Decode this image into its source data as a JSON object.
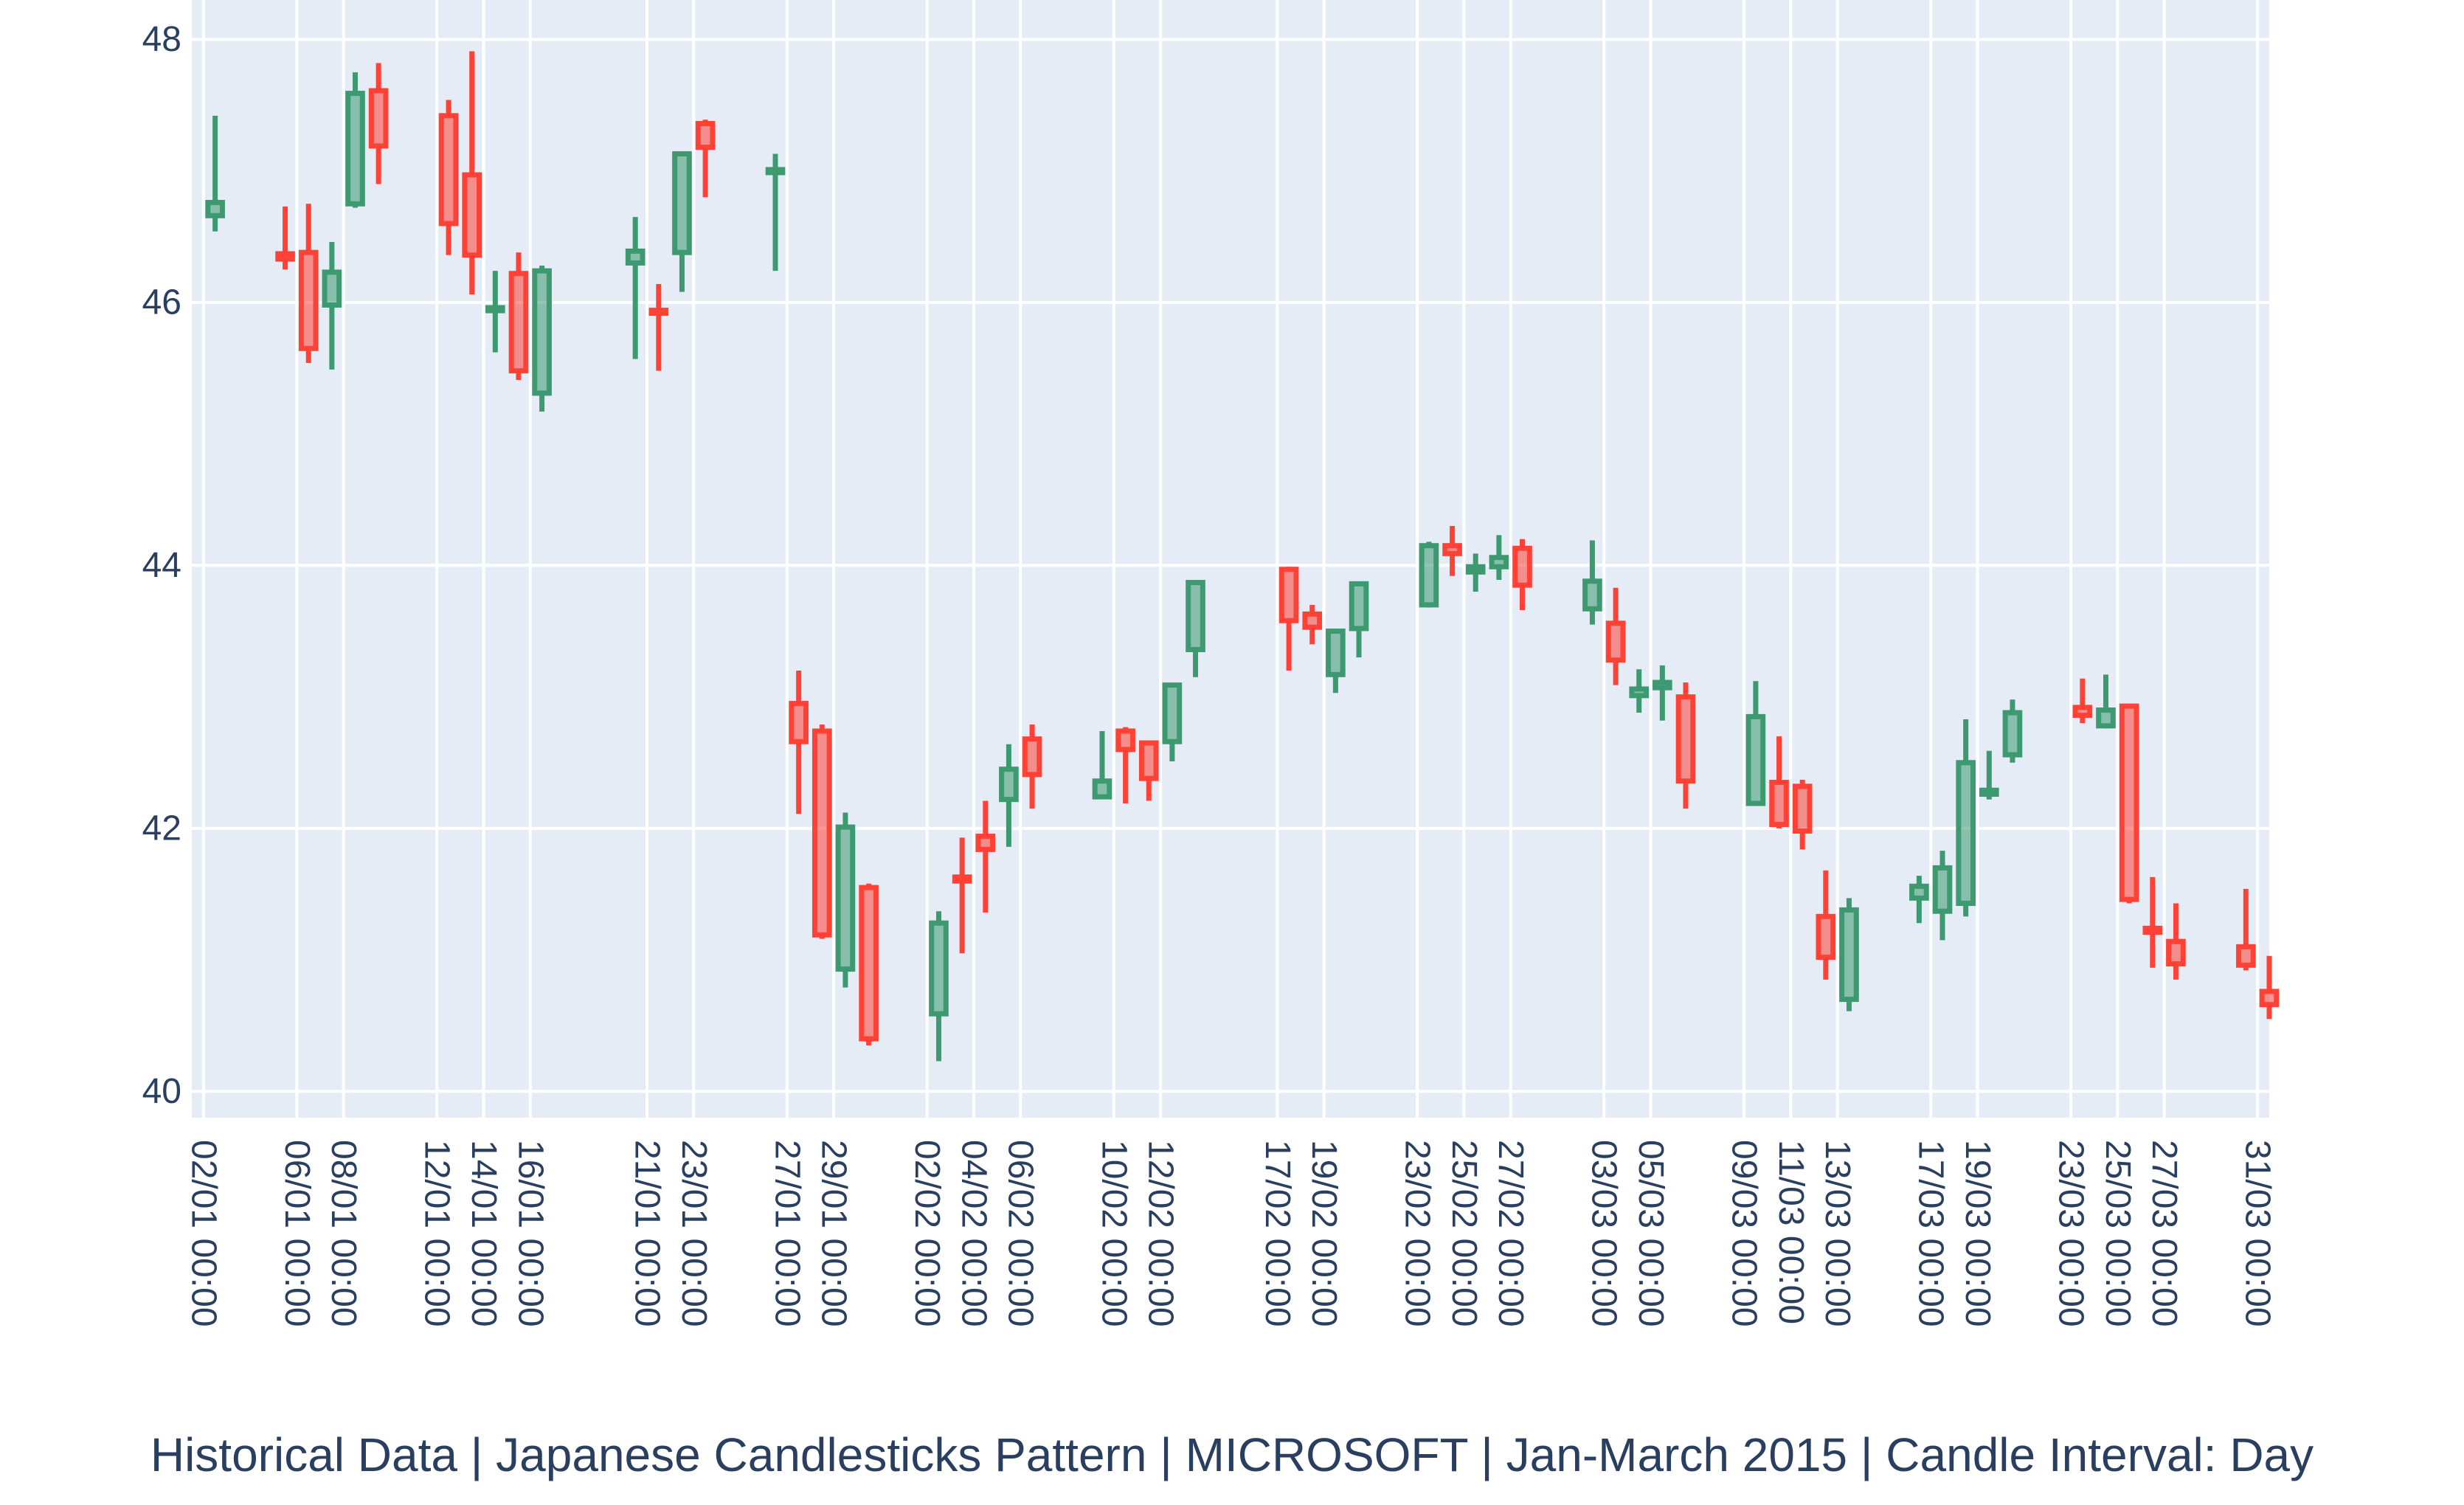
{
  "chart_data": {
    "type": "candlestick",
    "title": "",
    "xlabel": "Historical Data | Japanese Candlesticks Pattern | MICROSOFT | Jan-March 2015 | Candle Interval: Day",
    "ylabel": "",
    "ylim": [
      39.8,
      48.3
    ],
    "y_ticks": [
      40,
      42,
      44,
      46,
      48
    ],
    "grid": true,
    "legend": "none",
    "colors": {
      "background": "#e5ecf6",
      "grid": "#ffffff",
      "increasing": "#3d9970",
      "decreasing": "#ff4136",
      "text": "#2a3f5f"
    },
    "x_ticks": [
      "02/01 00:00",
      "06/01 00:00",
      "08/01 00:00",
      "12/01 00:00",
      "14/01 00:00",
      "16/01 00:00",
      "21/01 00:00",
      "23/01 00:00",
      "27/01 00:00",
      "29/01 00:00",
      "02/02 00:00",
      "04/02 00:00",
      "06/02 00:00",
      "10/02 00:00",
      "12/02 00:00",
      "17/02 00:00",
      "19/02 00:00",
      "23/02 00:00",
      "25/02 00:00",
      "27/02 00:00",
      "03/03 00:00",
      "05/03 00:00",
      "09/03 00:00",
      "11/03 00:00",
      "13/03 00:00",
      "17/03 00:00",
      "19/03 00:00",
      "23/03 00:00",
      "25/03 00:00",
      "27/03 00:00",
      "31/03 00:00"
    ],
    "candles": [
      {
        "date": "2015-01-02",
        "open": 46.66,
        "high": 47.42,
        "low": 46.54,
        "close": 46.76
      },
      {
        "date": "2015-01-05",
        "open": 46.37,
        "high": 46.73,
        "low": 46.25,
        "close": 46.33
      },
      {
        "date": "2015-01-06",
        "open": 46.38,
        "high": 46.75,
        "low": 45.54,
        "close": 45.65
      },
      {
        "date": "2015-01-07",
        "open": 45.98,
        "high": 46.46,
        "low": 45.49,
        "close": 46.23
      },
      {
        "date": "2015-01-08",
        "open": 46.75,
        "high": 47.75,
        "low": 46.72,
        "close": 47.59
      },
      {
        "date": "2015-01-09",
        "open": 47.61,
        "high": 47.82,
        "low": 46.9,
        "close": 47.19
      },
      {
        "date": "2015-01-12",
        "open": 47.42,
        "high": 47.54,
        "low": 46.36,
        "close": 46.6
      },
      {
        "date": "2015-01-13",
        "open": 46.97,
        "high": 47.91,
        "low": 46.06,
        "close": 46.36
      },
      {
        "date": "2015-01-14",
        "open": 45.96,
        "high": 46.24,
        "low": 45.62,
        "close": 45.96
      },
      {
        "date": "2015-01-15",
        "open": 46.22,
        "high": 46.38,
        "low": 45.41,
        "close": 45.48
      },
      {
        "date": "2015-01-16",
        "open": 45.31,
        "high": 46.28,
        "low": 45.17,
        "close": 46.24
      },
      {
        "date": "2015-01-20",
        "open": 46.3,
        "high": 46.65,
        "low": 45.57,
        "close": 46.39
      },
      {
        "date": "2015-01-21",
        "open": 45.94,
        "high": 46.14,
        "low": 45.48,
        "close": 45.92
      },
      {
        "date": "2015-01-22",
        "open": 46.38,
        "high": 47.14,
        "low": 46.08,
        "close": 47.13
      },
      {
        "date": "2015-01-23",
        "open": 47.36,
        "high": 47.39,
        "low": 46.8,
        "close": 47.18
      },
      {
        "date": "2015-01-26",
        "open": 47.0,
        "high": 47.13,
        "low": 46.24,
        "close": 47.01
      },
      {
        "date": "2015-01-27",
        "open": 42.95,
        "high": 43.2,
        "low": 42.11,
        "close": 42.66
      },
      {
        "date": "2015-01-28",
        "open": 42.74,
        "high": 42.79,
        "low": 41.16,
        "close": 41.19
      },
      {
        "date": "2015-01-29",
        "open": 40.93,
        "high": 42.12,
        "low": 40.79,
        "close": 42.01
      },
      {
        "date": "2015-01-30",
        "open": 41.55,
        "high": 41.58,
        "low": 40.35,
        "close": 40.4
      },
      {
        "date": "2015-02-02",
        "open": 40.59,
        "high": 41.37,
        "low": 40.23,
        "close": 41.28
      },
      {
        "date": "2015-02-03",
        "open": 41.63,
        "high": 41.93,
        "low": 41.05,
        "close": 41.6
      },
      {
        "date": "2015-02-04",
        "open": 41.94,
        "high": 42.21,
        "low": 41.36,
        "close": 41.84
      },
      {
        "date": "2015-02-05",
        "open": 42.22,
        "high": 42.64,
        "low": 41.86,
        "close": 42.45
      },
      {
        "date": "2015-02-06",
        "open": 42.68,
        "high": 42.79,
        "low": 42.15,
        "close": 42.41
      },
      {
        "date": "2015-02-09",
        "open": 42.24,
        "high": 42.74,
        "low": 42.24,
        "close": 42.36
      },
      {
        "date": "2015-02-10",
        "open": 42.74,
        "high": 42.77,
        "low": 42.19,
        "close": 42.6
      },
      {
        "date": "2015-02-11",
        "open": 42.65,
        "high": 42.65,
        "low": 42.21,
        "close": 42.38
      },
      {
        "date": "2015-02-12",
        "open": 42.66,
        "high": 43.09,
        "low": 42.51,
        "close": 43.09
      },
      {
        "date": "2015-02-13",
        "open": 43.36,
        "high": 43.88,
        "low": 43.15,
        "close": 43.87
      },
      {
        "date": "2015-02-17",
        "open": 43.97,
        "high": 43.99,
        "low": 43.2,
        "close": 43.58
      },
      {
        "date": "2015-02-18",
        "open": 43.63,
        "high": 43.7,
        "low": 43.4,
        "close": 43.53
      },
      {
        "date": "2015-02-19",
        "open": 43.17,
        "high": 43.5,
        "low": 43.03,
        "close": 43.5
      },
      {
        "date": "2015-02-20",
        "open": 43.52,
        "high": 43.87,
        "low": 43.3,
        "close": 43.86
      },
      {
        "date": "2015-02-23",
        "open": 43.7,
        "high": 44.18,
        "low": 43.68,
        "close": 44.15
      },
      {
        "date": "2015-02-24",
        "open": 44.15,
        "high": 44.3,
        "low": 43.92,
        "close": 44.09
      },
      {
        "date": "2015-02-25",
        "open": 43.95,
        "high": 44.09,
        "low": 43.8,
        "close": 43.99
      },
      {
        "date": "2015-02-26",
        "open": 43.99,
        "high": 44.23,
        "low": 43.89,
        "close": 44.06
      },
      {
        "date": "2015-02-27",
        "open": 44.13,
        "high": 44.2,
        "low": 43.66,
        "close": 43.85
      },
      {
        "date": "2015-03-02",
        "open": 43.67,
        "high": 44.19,
        "low": 43.55,
        "close": 43.88
      },
      {
        "date": "2015-03-03",
        "open": 43.56,
        "high": 43.83,
        "low": 43.09,
        "close": 43.28
      },
      {
        "date": "2015-03-04",
        "open": 43.01,
        "high": 43.21,
        "low": 42.88,
        "close": 43.06
      },
      {
        "date": "2015-03-05",
        "open": 43.07,
        "high": 43.24,
        "low": 42.82,
        "close": 43.11
      },
      {
        "date": "2015-03-06",
        "open": 43.0,
        "high": 43.11,
        "low": 42.15,
        "close": 42.36
      },
      {
        "date": "2015-03-09",
        "open": 42.19,
        "high": 43.12,
        "low": 42.19,
        "close": 42.85
      },
      {
        "date": "2015-03-10",
        "open": 42.35,
        "high": 42.7,
        "low": 42.0,
        "close": 42.03
      },
      {
        "date": "2015-03-11",
        "open": 42.32,
        "high": 42.37,
        "low": 41.84,
        "close": 41.98
      },
      {
        "date": "2015-03-12",
        "open": 41.33,
        "high": 41.68,
        "low": 40.85,
        "close": 41.02
      },
      {
        "date": "2015-03-13",
        "open": 40.7,
        "high": 41.47,
        "low": 40.61,
        "close": 41.38
      },
      {
        "date": "2015-03-16",
        "open": 41.47,
        "high": 41.64,
        "low": 41.28,
        "close": 41.56
      },
      {
        "date": "2015-03-17",
        "open": 41.37,
        "high": 41.83,
        "low": 41.15,
        "close": 41.7
      },
      {
        "date": "2015-03-18",
        "open": 41.43,
        "high": 42.83,
        "low": 41.33,
        "close": 42.5
      },
      {
        "date": "2015-03-19",
        "open": 42.26,
        "high": 42.59,
        "low": 42.22,
        "close": 42.29
      },
      {
        "date": "2015-03-20",
        "open": 42.56,
        "high": 42.98,
        "low": 42.5,
        "close": 42.88
      },
      {
        "date": "2015-03-23",
        "open": 42.92,
        "high": 43.14,
        "low": 42.8,
        "close": 42.86
      },
      {
        "date": "2015-03-24",
        "open": 42.78,
        "high": 43.17,
        "low": 42.76,
        "close": 42.9
      },
      {
        "date": "2015-03-25",
        "open": 42.93,
        "high": 42.94,
        "low": 41.43,
        "close": 41.46
      },
      {
        "date": "2015-03-26",
        "open": 41.24,
        "high": 41.63,
        "low": 40.94,
        "close": 41.21
      },
      {
        "date": "2015-03-27",
        "open": 41.14,
        "high": 41.43,
        "low": 40.85,
        "close": 40.97
      },
      {
        "date": "2015-03-30",
        "open": 41.1,
        "high": 41.54,
        "low": 40.92,
        "close": 40.96
      },
      {
        "date": "2015-03-31",
        "open": 40.76,
        "high": 41.03,
        "low": 40.55,
        "close": 40.66
      }
    ]
  }
}
